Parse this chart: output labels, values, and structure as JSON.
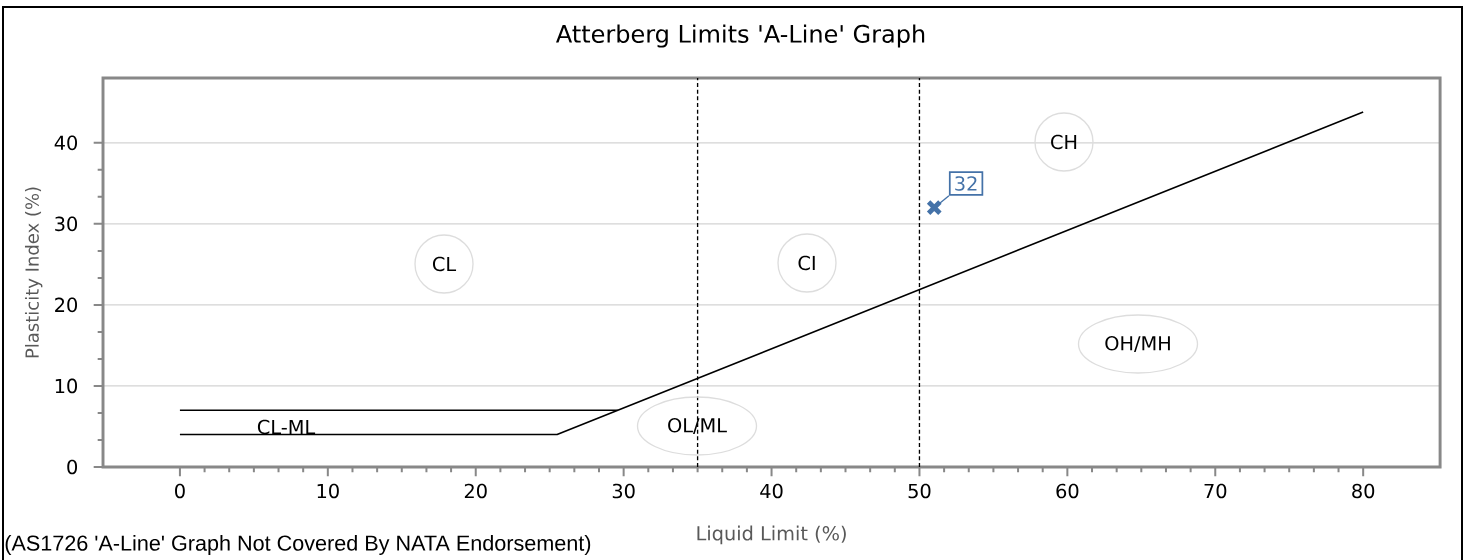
{
  "chart_data": {
    "type": "line",
    "title": "Atterberg Limits 'A-Line' Graph",
    "xlabel": "Liquid Limit (%)",
    "ylabel": "Plasticity Index (%)",
    "xlim": [
      -5.2,
      85.2
    ],
    "ylim": [
      0,
      48
    ],
    "xticks": [
      0,
      10,
      20,
      30,
      40,
      50,
      60,
      70,
      80
    ],
    "yticks": [
      0,
      10,
      20,
      30,
      40
    ],
    "grid": "y",
    "series": [
      {
        "color": "#000000",
        "x": [
          0,
          25.5,
          80
        ],
        "values": [
          4,
          4,
          43.8
        ]
      },
      {
        "color": "#000000",
        "x": [
          0,
          29.6
        ],
        "values": [
          7,
          7
        ]
      },
      {
        "type": "scatter",
        "color": "#4472a8",
        "marker": "cross",
        "x": [
          51
        ],
        "values": [
          32
        ],
        "value_labels": [
          "32"
        ]
      }
    ],
    "ref_lines": [
      {
        "axis": "x",
        "value": 35,
        "color": "#000000",
        "line_style": "dashed"
      },
      {
        "axis": "x",
        "value": 50,
        "color": "#000000",
        "line_style": "dashed"
      }
    ],
    "annotations": [
      "CL",
      "CI",
      "CH",
      "OH/MH",
      "OL/ML",
      "CL-ML",
      "(AS1726 'A-Line' Graph Not Covered By NATA Endorsement)"
    ]
  }
}
